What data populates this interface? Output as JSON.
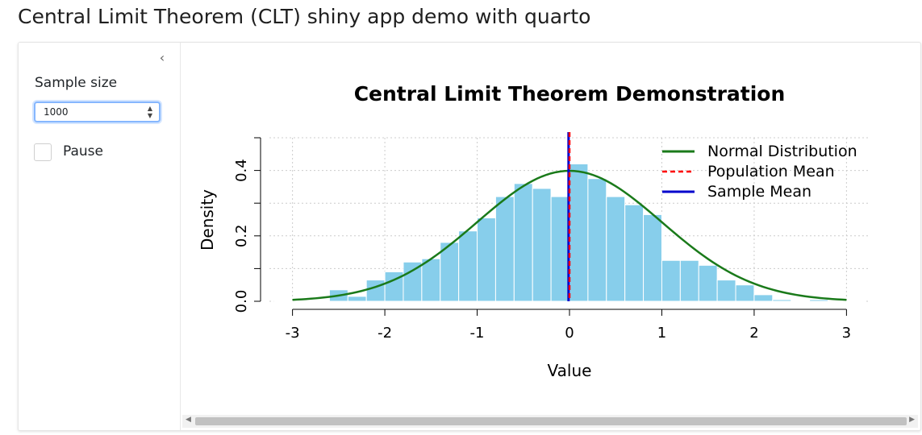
{
  "page": {
    "title": "Central Limit Theorem (CLT) shiny app demo with quarto"
  },
  "sidebar": {
    "collapse_icon": "‹",
    "sample_size_label": "Sample size",
    "sample_size_value": "1000",
    "pause_label": "Pause",
    "pause_checked": false
  },
  "chart_data": {
    "type": "bar",
    "title": "Central Limit Theorem Demonstration",
    "xlabel": "Value",
    "ylabel": "Density",
    "xlim": [
      -3.25,
      3.25
    ],
    "ylim": [
      0,
      0.5
    ],
    "xticks": [
      "-3",
      "-2",
      "-1",
      "0",
      "1",
      "2",
      "3"
    ],
    "yticks": [
      "0.0",
      "0.2",
      "0.4"
    ],
    "grid": true,
    "legend_position": "top-right",
    "bin_width": 0.2,
    "bins": [
      {
        "x0": -3.2,
        "density": 0.0
      },
      {
        "x0": -3.0,
        "density": 0.0
      },
      {
        "x0": -2.8,
        "density": 0.0
      },
      {
        "x0": -2.6,
        "density": 0.035
      },
      {
        "x0": -2.4,
        "density": 0.015
      },
      {
        "x0": -2.2,
        "density": 0.065
      },
      {
        "x0": -2.0,
        "density": 0.09
      },
      {
        "x0": -1.8,
        "density": 0.12
      },
      {
        "x0": -1.6,
        "density": 0.13
      },
      {
        "x0": -1.4,
        "density": 0.18
      },
      {
        "x0": -1.2,
        "density": 0.215
      },
      {
        "x0": -1.0,
        "density": 0.255
      },
      {
        "x0": -0.8,
        "density": 0.32
      },
      {
        "x0": -0.6,
        "density": 0.36
      },
      {
        "x0": -0.4,
        "density": 0.345
      },
      {
        "x0": -0.2,
        "density": 0.32
      },
      {
        "x0": 0.0,
        "density": 0.42
      },
      {
        "x0": 0.2,
        "density": 0.375
      },
      {
        "x0": 0.4,
        "density": 0.32
      },
      {
        "x0": 0.6,
        "density": 0.295
      },
      {
        "x0": 0.8,
        "density": 0.265
      },
      {
        "x0": 1.0,
        "density": 0.125
      },
      {
        "x0": 1.2,
        "density": 0.125
      },
      {
        "x0": 1.4,
        "density": 0.11
      },
      {
        "x0": 1.6,
        "density": 0.065
      },
      {
        "x0": 1.8,
        "density": 0.05
      },
      {
        "x0": 2.0,
        "density": 0.02
      },
      {
        "x0": 2.2,
        "density": 0.005
      },
      {
        "x0": 2.4,
        "density": 0.0
      },
      {
        "x0": 2.6,
        "density": 0.005
      },
      {
        "x0": 2.8,
        "density": 0.0
      },
      {
        "x0": 3.0,
        "density": 0.0
      }
    ],
    "population_mean": 0,
    "sample_mean": -0.01,
    "series": [
      {
        "name": "Normal Distribution",
        "type": "line",
        "mean": 0,
        "sd": 1,
        "x_range": [
          -3,
          3
        ],
        "color": "#1a7a1a"
      },
      {
        "name": "Population Mean",
        "type": "vline-dashed",
        "value": 0,
        "color": "#ff0000"
      },
      {
        "name": "Sample Mean",
        "type": "vline",
        "value": -0.01,
        "color": "#0000cc"
      }
    ],
    "bar_color": "#87ceeb"
  }
}
